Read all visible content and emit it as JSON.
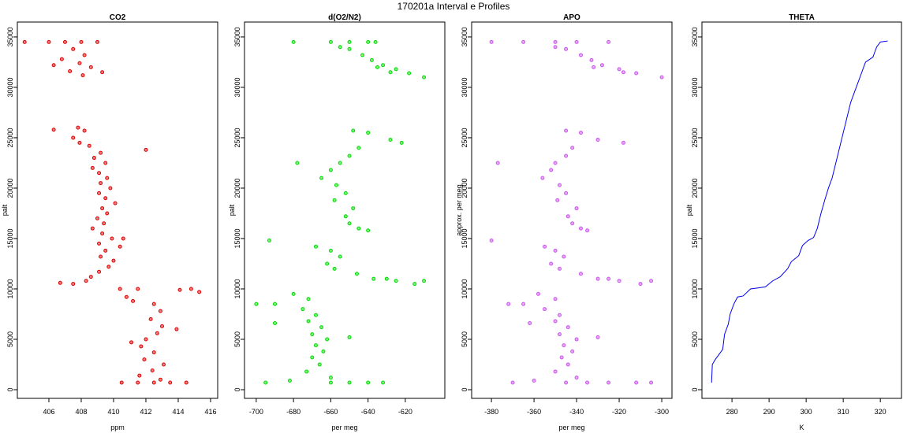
{
  "title": "170201a   Interval e Profiles",
  "chart_data": [
    {
      "type": "scatter",
      "title": "CO2",
      "x_label": "ppm",
      "y_label": "palt",
      "color": "#e00000",
      "xlim": [
        404.05,
        416.44
      ],
      "ylim": [
        -860,
        36480
      ],
      "xticks": [
        406,
        408,
        410,
        412,
        414,
        416
      ],
      "yticks": [
        0,
        5000,
        10000,
        15000,
        20000,
        25000,
        30000,
        35000
      ],
      "x": [
        404.5,
        406,
        407,
        408,
        409,
        407.5,
        408.2,
        406.8,
        407.9,
        408.6,
        407.3,
        408.1,
        409.3,
        406.3,
        406.3,
        407.8,
        408.2,
        407.5,
        407.9,
        408.5,
        409.2,
        408.8,
        409.5,
        408.7,
        409.1,
        409.6,
        409.2,
        409.8,
        409.1,
        409.5,
        410.1,
        409.3,
        409.6,
        409.0,
        409.4,
        408.7,
        409.3,
        409.9,
        409.1,
        410.4,
        409.5,
        409.2,
        410.0,
        409.7,
        409.1,
        408.6,
        408.3,
        406.7,
        407.5,
        412.0,
        410.6,
        410.4,
        411.5,
        414.1,
        415.3,
        414.8,
        410.8,
        411.2,
        412.5,
        412.9,
        412.3,
        413.0,
        412.7,
        412.0,
        411.7,
        412.5,
        411.9,
        413.1,
        412.4,
        411.6,
        412.9,
        410.5,
        411.5,
        412.5,
        413.5,
        414.5,
        413.9,
        411.1
      ],
      "y": [
        34500,
        34500,
        34500,
        34500,
        34500,
        33800,
        33200,
        32800,
        32400,
        32000,
        31600,
        31200,
        31500,
        32200,
        25800,
        26000,
        25700,
        25000,
        24500,
        24200,
        23500,
        23000,
        22500,
        22000,
        21500,
        21000,
        20500,
        20000,
        19500,
        19000,
        18500,
        18000,
        17500,
        17000,
        16500,
        16000,
        15500,
        15000,
        14500,
        14200,
        13800,
        13200,
        12800,
        12200,
        11700,
        11200,
        10800,
        10600,
        10500,
        23800,
        15000,
        10000,
        10000,
        9900,
        9700,
        10000,
        9200,
        8800,
        8500,
        7800,
        7000,
        6300,
        5600,
        5000,
        4300,
        3700,
        3000,
        2500,
        1900,
        1400,
        1000,
        700,
        700,
        700,
        700,
        700,
        6000,
        4700
      ]
    },
    {
      "type": "scatter",
      "title": "d(O2/N2)",
      "x_label": "per meg",
      "y_label": "palt",
      "color": "#00dd00",
      "xlim": [
        -706.3,
        -598.8
      ],
      "ylim": [
        -860,
        36480
      ],
      "xticks": [
        -700,
        -680,
        -660,
        -640,
        -620
      ],
      "yticks": [
        0,
        5000,
        10000,
        15000,
        20000,
        25000,
        30000,
        35000
      ],
      "x": [
        -680,
        -660,
        -650,
        -640,
        -636,
        -650,
        -643,
        -638,
        -632,
        -625,
        -618,
        -610,
        -655,
        -635,
        -628,
        -648,
        -640,
        -628,
        -622,
        -645,
        -650,
        -655,
        -660,
        -665,
        -657,
        -652,
        -658,
        -648,
        -652,
        -650,
        -645,
        -640,
        -693,
        -668,
        -660,
        -655,
        -662,
        -658,
        -646,
        -637,
        -625,
        -615,
        -610,
        -678,
        -630,
        -700,
        -690,
        -680,
        -672,
        -675,
        -668,
        -672,
        -665,
        -670,
        -662,
        -668,
        -664,
        -670,
        -666,
        -673,
        -660,
        -682,
        -695,
        -660,
        -650,
        -640,
        -632,
        -690,
        -650
      ],
      "y": [
        34500,
        34500,
        34500,
        34500,
        34500,
        33800,
        33200,
        32700,
        32200,
        31800,
        31400,
        31000,
        34000,
        32000,
        31500,
        25700,
        25500,
        24800,
        24500,
        24000,
        23200,
        22500,
        21800,
        21000,
        20300,
        19500,
        18800,
        18000,
        17200,
        16500,
        16000,
        15800,
        14800,
        14200,
        13800,
        13200,
        12500,
        12000,
        11500,
        11000,
        10800,
        10500,
        10800,
        22500,
        11000,
        8500,
        8500,
        9500,
        9000,
        8000,
        7400,
        6800,
        6200,
        5500,
        5000,
        4400,
        3800,
        3200,
        2500,
        1800,
        1200,
        900,
        700,
        700,
        700,
        700,
        700,
        6600,
        5200
      ]
    },
    {
      "type": "scatter",
      "title": "APO",
      "x_label": "per meg",
      "y_label": "approx. per meg",
      "color": "#cc55ee",
      "xlim": [
        -389.3,
        -295.2
      ],
      "ylim": [
        -860,
        36480
      ],
      "xticks": [
        -380,
        -360,
        -340,
        -320,
        -300
      ],
      "yticks": [
        0,
        5000,
        10000,
        15000,
        20000,
        25000,
        30000,
        35000
      ],
      "x": [
        -380,
        -365,
        -350,
        -340,
        -325,
        -345,
        -338,
        -333,
        -328,
        -320,
        -312,
        -300,
        -350,
        -332,
        -318,
        -345,
        -338,
        -330,
        -318,
        -342,
        -345,
        -350,
        -352,
        -356,
        -348,
        -345,
        -349,
        -340,
        -344,
        -342,
        -338,
        -335,
        -380,
        -355,
        -350,
        -346,
        -352,
        -348,
        -338,
        -330,
        -320,
        -310,
        -305,
        -377,
        -325,
        -372,
        -365,
        -358,
        -350,
        -355,
        -348,
        -350,
        -344,
        -348,
        -340,
        -346,
        -342,
        -347,
        -344,
        -350,
        -340,
        -360,
        -370,
        -345,
        -335,
        -325,
        -312,
        -305,
        -362,
        -330
      ],
      "y": [
        34500,
        34500,
        34500,
        34500,
        34500,
        33800,
        33200,
        32700,
        32200,
        31800,
        31400,
        31000,
        34000,
        32000,
        31500,
        25700,
        25500,
        24800,
        24500,
        24000,
        23200,
        22500,
        21800,
        21000,
        20300,
        19500,
        18800,
        18000,
        17200,
        16500,
        16000,
        15800,
        14800,
        14200,
        13800,
        13200,
        12500,
        12000,
        11500,
        11000,
        10800,
        10500,
        10800,
        22500,
        11000,
        8500,
        8500,
        9500,
        9000,
        8000,
        7400,
        6800,
        6200,
        5500,
        5000,
        4400,
        3800,
        3200,
        2500,
        1800,
        1200,
        900,
        700,
        700,
        700,
        700,
        700,
        700,
        6600,
        5200
      ]
    },
    {
      "type": "line",
      "title": "THETA",
      "x_label": "K",
      "y_label": "palt",
      "color": "#0000ee",
      "xlim": [
        271.9,
        325.7
      ],
      "ylim": [
        -860,
        36480
      ],
      "xticks": [
        280,
        290,
        300,
        310,
        320
      ],
      "yticks": [
        0,
        5000,
        10000,
        15000,
        20000,
        25000,
        30000,
        35000
      ],
      "x": [
        274.5,
        274.7,
        275.5,
        276.5,
        277.5,
        278,
        279,
        279.5,
        280.5,
        281.5,
        283,
        285,
        287,
        289,
        291,
        293,
        295,
        296,
        298,
        299,
        300.5,
        302,
        303,
        304,
        305,
        306,
        307,
        308,
        309,
        310,
        311,
        312,
        313,
        314,
        315,
        316,
        318,
        319,
        320,
        322
      ],
      "y": [
        700,
        2500,
        3000,
        3500,
        4000,
        5500,
        6500,
        7500,
        8500,
        9200,
        9300,
        10000,
        10100,
        10200,
        10800,
        11200,
        12000,
        12700,
        13300,
        14300,
        14800,
        15100,
        16000,
        17500,
        18800,
        20000,
        21000,
        22500,
        24000,
        25500,
        27000,
        28500,
        29500,
        30500,
        31500,
        32500,
        33000,
        34000,
        34500,
        34600
      ]
    }
  ]
}
